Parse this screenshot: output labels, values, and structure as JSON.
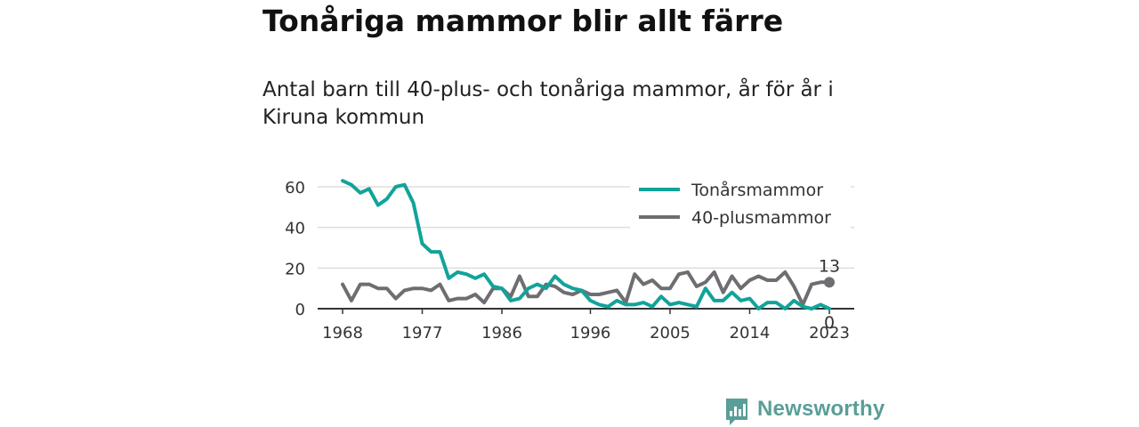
{
  "title": "Tonåriga mammor blir allt färre",
  "subtitle": "Antal barn till 40-plus- och tonåriga mammor, år för år i Kiruna kommun",
  "brand": "Newsworthy",
  "colors": {
    "teen": "#12a39a",
    "forty": "#6e6e72",
    "logo": "#5a9e98"
  },
  "chart_data": {
    "type": "line",
    "title": "",
    "xlabel": "",
    "ylabel": "",
    "xlim": [
      1968,
      2023
    ],
    "ylim": [
      0,
      65
    ],
    "x_ticks": [
      1968,
      1977,
      1986,
      1996,
      2005,
      2014,
      2023
    ],
    "y_ticks": [
      0,
      20,
      40,
      60
    ],
    "grid": "horizontal",
    "legend": "top-right",
    "x": [
      1968,
      1969,
      1970,
      1971,
      1972,
      1973,
      1974,
      1975,
      1976,
      1977,
      1978,
      1979,
      1980,
      1981,
      1982,
      1983,
      1984,
      1985,
      1986,
      1987,
      1988,
      1989,
      1990,
      1991,
      1992,
      1993,
      1994,
      1995,
      1996,
      1997,
      1998,
      1999,
      2000,
      2001,
      2002,
      2003,
      2004,
      2005,
      2006,
      2007,
      2008,
      2009,
      2010,
      2011,
      2012,
      2013,
      2014,
      2015,
      2016,
      2017,
      2018,
      2019,
      2020,
      2021,
      2022,
      2023
    ],
    "series": [
      {
        "name": "Tonårsmammor",
        "color": "#12a39a",
        "values": [
          63,
          61,
          57,
          59,
          51,
          54,
          60,
          61,
          52,
          32,
          28,
          28,
          15,
          18,
          17,
          15,
          17,
          11,
          10,
          4,
          5,
          10,
          12,
          10,
          16,
          12,
          10,
          9,
          4,
          2,
          1,
          4,
          2,
          2,
          3,
          1,
          6,
          2,
          3,
          2,
          1,
          10,
          4,
          4,
          8,
          4,
          5,
          0,
          3,
          3,
          0,
          4,
          1,
          0,
          2,
          0
        ],
        "end_label": "0"
      },
      {
        "name": "40-plusmammor",
        "color": "#6e6e72",
        "values": [
          12,
          4,
          12,
          12,
          10,
          10,
          5,
          9,
          10,
          10,
          9,
          12,
          4,
          5,
          5,
          7,
          3,
          10,
          10,
          6,
          16,
          6,
          6,
          12,
          11,
          8,
          7,
          9,
          7,
          7,
          8,
          9,
          3,
          17,
          12,
          14,
          10,
          10,
          17,
          18,
          11,
          13,
          18,
          8,
          16,
          10,
          14,
          16,
          14,
          14,
          18,
          11,
          2,
          12,
          13,
          13
        ],
        "end_label": "13"
      }
    ]
  }
}
